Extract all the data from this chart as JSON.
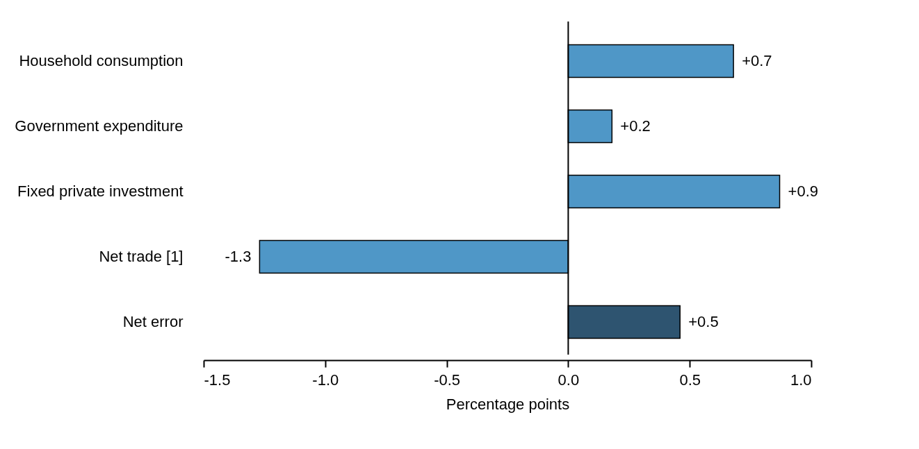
{
  "chart_data": {
    "type": "bar",
    "orientation": "horizontal",
    "xlabel": "Percentage points",
    "categories": [
      "Household consumption",
      "Government expenditure",
      "Fixed private investment",
      "Net trade [1]",
      "Net error"
    ],
    "values": [
      0.68,
      0.18,
      0.87,
      -1.27,
      0.46
    ],
    "colors": [
      "#4f97c7",
      "#4f97c7",
      "#4f97c7",
      "#4f97c7",
      "#2e5470"
    ],
    "value_labels": [
      "+0.7",
      "+0.2",
      "+0.9",
      "-1.3",
      "+0.5"
    ],
    "xlim": [
      -1.5,
      1.0
    ],
    "xticks": [
      {
        "value": -1.5,
        "label": "-1.5"
      },
      {
        "value": -1.0,
        "label": "-1.0"
      },
      {
        "value": -0.5,
        "label": "-0.5"
      },
      {
        "value": 0.0,
        "label": "0.0"
      },
      {
        "value": 0.5,
        "label": "0.5"
      },
      {
        "value": 1.0,
        "label": "1.0"
      }
    ],
    "ref_lines": [
      {
        "axis": "x",
        "value": 0
      }
    ],
    "grid": false,
    "legend": false
  }
}
